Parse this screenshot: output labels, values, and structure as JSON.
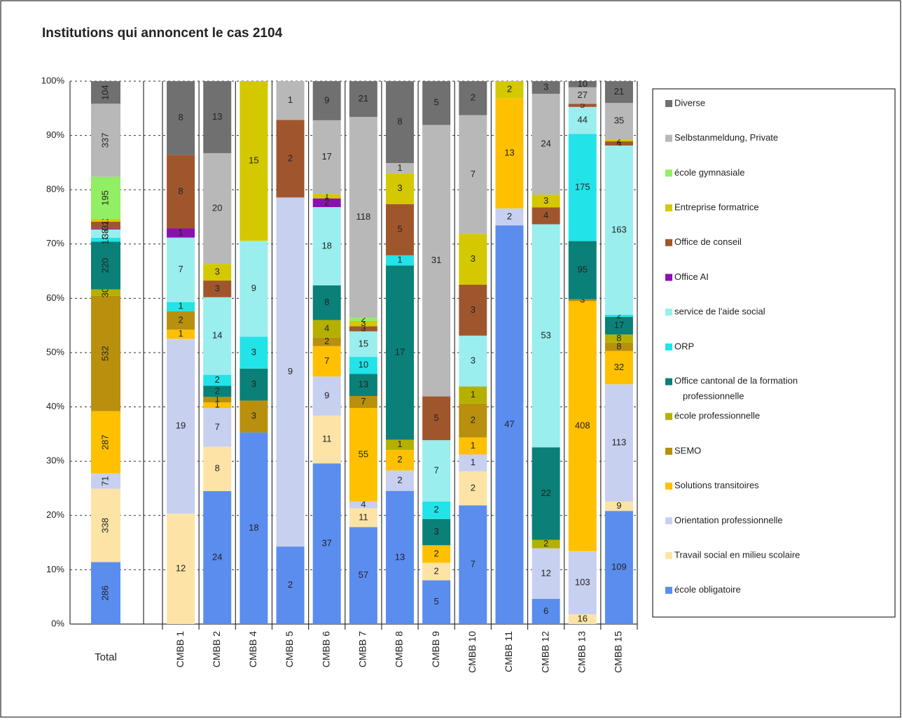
{
  "chart_data": {
    "type": "stacked_bar_percent",
    "title": "Institutions qui annoncent le cas 2104",
    "categories": [
      "Total",
      "CMBB 1",
      "CMBB 2",
      "CMBB 4",
      "CMBB 5",
      "CMBB 6",
      "CMBB 7",
      "CMBB 8",
      "CMBB 9",
      "CMBB 10",
      "CMBB 11",
      "CMBB 12",
      "CMBB 13",
      "CMBB 15"
    ],
    "ylim": [
      0,
      100
    ],
    "yticks": [
      {
        "value": 0,
        "label": "0%"
      },
      {
        "value": 10,
        "label": "10%"
      },
      {
        "value": 20,
        "label": "20%"
      },
      {
        "value": 30,
        "label": "30%"
      },
      {
        "value": 40,
        "label": "40%"
      },
      {
        "value": 50,
        "label": "50%"
      },
      {
        "value": 60,
        "label": "60%"
      },
      {
        "value": 70,
        "label": "70%"
      },
      {
        "value": 80,
        "label": "80%"
      },
      {
        "value": 90,
        "label": "90%"
      },
      {
        "value": 100,
        "label": "100%"
      }
    ],
    "grid": true,
    "legend": "right",
    "series": [
      {
        "name": "école obligatoire",
        "color": "#5b8def",
        "values": [
          286,
          0,
          24,
          18,
          2,
          37,
          57,
          13,
          5,
          7,
          47,
          6,
          0,
          109
        ]
      },
      {
        "name": "Travail social en milieu scolaire",
        "color": "#fde4a6",
        "values": [
          338,
          12,
          8,
          0,
          0,
          11,
          11,
          0,
          2,
          2,
          0,
          0,
          16,
          9
        ]
      },
      {
        "name": "Orientation professionnelle",
        "color": "#c8d0f0",
        "values": [
          71,
          19,
          7,
          0,
          9,
          9,
          4,
          2,
          0,
          1,
          2,
          12,
          103,
          113
        ]
      },
      {
        "name": "Solutions transitoires",
        "color": "#ffc000",
        "values": [
          287,
          1,
          1,
          0,
          0,
          7,
          55,
          2,
          2,
          1,
          13,
          0,
          408,
          32
        ]
      },
      {
        "name": "SEMO",
        "color": "#b8900e",
        "values": [
          532,
          2,
          1,
          3,
          0,
          2,
          7,
          0,
          0,
          2,
          0,
          0,
          3,
          8
        ]
      },
      {
        "name": "école professionnelle",
        "color": "#b5b000",
        "values": [
          30,
          0,
          0,
          0,
          0,
          4,
          0,
          1,
          0,
          1,
          0,
          2,
          0,
          8
        ]
      },
      {
        "name": "Office cantonal de la formation professionnelle",
        "color": "#0a8078",
        "values": [
          220,
          0,
          2,
          3,
          0,
          8,
          13,
          17,
          3,
          0,
          0,
          22,
          95,
          17
        ]
      },
      {
        "name": "ORP",
        "color": "#22e3e8",
        "values": [
          18,
          1,
          2,
          3,
          0,
          0,
          10,
          1,
          2,
          0,
          0,
          0,
          175,
          2
        ]
      },
      {
        "name": "service de l'aide social",
        "color": "#9aeeee",
        "values": [
          38,
          7,
          14,
          9,
          0,
          18,
          15,
          0,
          7,
          3,
          0,
          53,
          44,
          163
        ]
      },
      {
        "name": "Office AI",
        "color": "#8b10b0",
        "values": [
          4,
          1,
          0,
          0,
          0,
          2,
          0,
          0,
          0,
          0,
          0,
          0,
          0,
          0
        ]
      },
      {
        "name": "Office de conseil",
        "color": "#a0562d",
        "values": [
          32,
          8,
          3,
          0,
          2,
          0,
          3,
          5,
          5,
          3,
          0,
          4,
          5,
          4
        ]
      },
      {
        "name": "Entreprise formatrice",
        "color": "#d4c800",
        "values": [
          12,
          0,
          3,
          15,
          0,
          1,
          3,
          3,
          0,
          3,
          2,
          3,
          0,
          2
        ]
      },
      {
        "name": "école gymnasiale",
        "color": "#92ee62",
        "values": [
          195,
          0,
          0,
          0,
          0,
          0,
          2,
          0,
          0,
          0,
          0,
          0,
          0,
          0
        ]
      },
      {
        "name": "Selbstanmeldung, Private",
        "color": "#b8b8b8",
        "values": [
          337,
          0,
          20,
          0,
          1,
          17,
          118,
          1,
          31,
          7,
          0,
          24,
          27,
          35
        ]
      },
      {
        "name": "Diverse",
        "color": "#707070",
        "values": [
          104,
          8,
          13,
          0,
          0,
          9,
          21,
          8,
          5,
          2,
          0,
          3,
          10,
          21
        ]
      }
    ]
  }
}
